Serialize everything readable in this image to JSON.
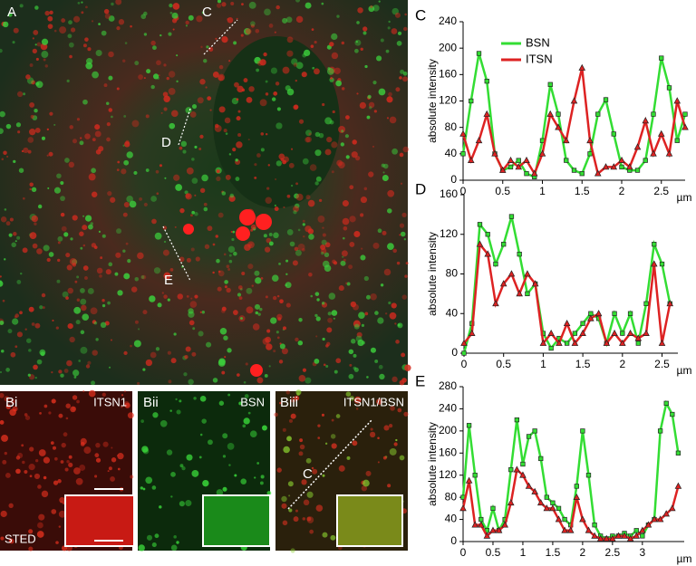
{
  "panels": {
    "a": "A",
    "c": "C",
    "d": "D",
    "e": "E",
    "bi": "Bi",
    "bii": "Bii",
    "biii": "Biii",
    "bi_label": "ITSN1",
    "bii_label": "BSN",
    "biii_label": "ITSN1/BSN",
    "biii_line": "C",
    "sted": "STED"
  },
  "chart_data": [
    {
      "type": "line",
      "title": "C",
      "ylabel": "absolute intensity",
      "xlabel": "µm",
      "legend": "upper left",
      "x": [
        0,
        0.1,
        0.2,
        0.3,
        0.4,
        0.5,
        0.6,
        0.7,
        0.8,
        0.9,
        1,
        1.1,
        1.2,
        1.3,
        1.4,
        1.5,
        1.6,
        1.7,
        1.8,
        1.9,
        2,
        2.1,
        2.2,
        2.3,
        2.4,
        2.5,
        2.6,
        2.7,
        2.8
      ],
      "series": [
        {
          "name": "BSN",
          "color": "#33dd33",
          "marker": "square",
          "values": [
            40,
            120,
            192,
            150,
            40,
            15,
            20,
            30,
            10,
            5,
            60,
            145,
            100,
            30,
            15,
            10,
            40,
            100,
            122,
            70,
            20,
            15,
            15,
            30,
            100,
            185,
            140,
            60,
            100
          ]
        },
        {
          "name": "ITSN",
          "color": "#dd2222",
          "marker": "triangle",
          "values": [
            70,
            30,
            60,
            100,
            40,
            15,
            30,
            20,
            30,
            10,
            40,
            100,
            80,
            60,
            120,
            170,
            60,
            10,
            20,
            20,
            30,
            20,
            50,
            90,
            40,
            70,
            40,
            120,
            80
          ]
        }
      ],
      "xlim": [
        0,
        2.8
      ],
      "ylim": [
        0,
        240
      ],
      "xticks": [
        0,
        0.5,
        1,
        1.5,
        2,
        2.5
      ],
      "yticks": [
        0,
        40,
        80,
        120,
        160,
        200,
        240
      ]
    },
    {
      "type": "line",
      "title": "D",
      "ylabel": "absolute intensity",
      "xlabel": "µm",
      "x": [
        0,
        0.1,
        0.2,
        0.3,
        0.4,
        0.5,
        0.6,
        0.7,
        0.8,
        0.9,
        1,
        1.1,
        1.2,
        1.3,
        1.4,
        1.5,
        1.6,
        1.7,
        1.8,
        1.9,
        2,
        2.1,
        2.2,
        2.3,
        2.4,
        2.5,
        2.6
      ],
      "series": [
        {
          "name": "BSN",
          "color": "#33dd33",
          "marker": "square",
          "values": [
            0,
            30,
            130,
            120,
            90,
            110,
            138,
            100,
            60,
            70,
            20,
            5,
            15,
            10,
            20,
            30,
            40,
            35,
            10,
            40,
            20,
            40,
            10,
            50,
            110,
            90,
            50
          ]
        },
        {
          "name": "ITSN",
          "color": "#dd2222",
          "marker": "triangle",
          "values": [
            10,
            20,
            110,
            100,
            50,
            70,
            80,
            60,
            80,
            70,
            10,
            20,
            10,
            30,
            10,
            20,
            35,
            40,
            10,
            20,
            10,
            20,
            15,
            20,
            90,
            10,
            50
          ]
        }
      ],
      "xlim": [
        0,
        2.7
      ],
      "ylim": [
        0,
        160
      ],
      "xticks": [
        0,
        0.5,
        1,
        1.5,
        2,
        2.5
      ],
      "yticks": [
        0,
        40,
        80,
        120,
        160
      ]
    },
    {
      "type": "line",
      "title": "E",
      "ylabel": "absolute intensity",
      "xlabel": "µm",
      "x": [
        0,
        0.1,
        0.2,
        0.3,
        0.4,
        0.5,
        0.6,
        0.7,
        0.8,
        0.9,
        1,
        1.1,
        1.2,
        1.3,
        1.4,
        1.5,
        1.6,
        1.7,
        1.8,
        1.9,
        2,
        2.1,
        2.2,
        2.3,
        2.4,
        2.5,
        2.6,
        2.7,
        2.8,
        2.9,
        3,
        3.1,
        3.2,
        3.3,
        3.4,
        3.5,
        3.6
      ],
      "series": [
        {
          "name": "BSN",
          "color": "#33dd33",
          "marker": "square",
          "values": [
            80,
            210,
            120,
            40,
            20,
            60,
            20,
            40,
            130,
            220,
            140,
            190,
            200,
            150,
            80,
            70,
            60,
            40,
            30,
            100,
            200,
            120,
            30,
            10,
            5,
            10,
            10,
            15,
            10,
            20,
            10,
            30,
            40,
            200,
            250,
            230,
            160
          ]
        },
        {
          "name": "ITSN",
          "color": "#dd2222",
          "marker": "triangle",
          "values": [
            60,
            110,
            30,
            30,
            10,
            20,
            20,
            30,
            70,
            130,
            120,
            100,
            90,
            70,
            60,
            60,
            40,
            20,
            20,
            80,
            40,
            20,
            10,
            5,
            5,
            5,
            10,
            10,
            5,
            10,
            20,
            30,
            40,
            40,
            50,
            60,
            100
          ]
        }
      ],
      "xlim": [
        0,
        3.7
      ],
      "ylim": [
        0,
        280
      ],
      "xticks": [
        0,
        0.5,
        1,
        1.5,
        2,
        2.5,
        3
      ],
      "yticks": [
        0,
        40,
        80,
        120,
        160,
        200,
        240,
        280
      ]
    }
  ]
}
